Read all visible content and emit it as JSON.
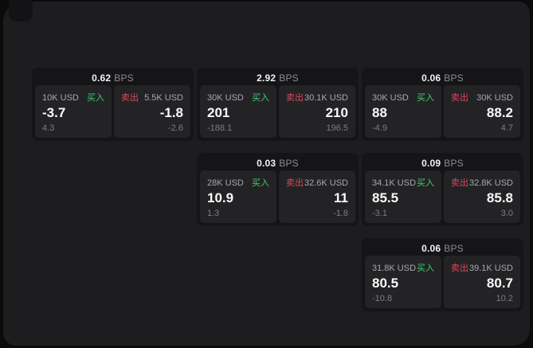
{
  "labels": {
    "buy": "买入",
    "sell": "卖出",
    "bps_unit": "BPS"
  },
  "colors": {
    "buy": "#3ecf6e",
    "sell": "#d8485c",
    "panel_bg": "#1d1d1f",
    "card_bg": "#151517",
    "subpanel_bg": "#232326",
    "value_text": "#fafafa",
    "muted_text": "#8c8c90"
  },
  "cards": [
    {
      "bps": "0.62",
      "col": 1,
      "row": 1,
      "buy": {
        "size": "10K USD",
        "value": "-3.7",
        "sub": "4.3"
      },
      "sell": {
        "size": "5.5K USD",
        "value": "-1.8",
        "sub": "-2.6"
      }
    },
    {
      "bps": "2.92",
      "col": 2,
      "row": 1,
      "buy": {
        "size": "30K USD",
        "value": "201",
        "sub": "-188.1"
      },
      "sell": {
        "size": "30.1K USD",
        "value": "210",
        "sub": "196.5"
      }
    },
    {
      "bps": "0.06",
      "col": 3,
      "row": 1,
      "buy": {
        "size": "30K USD",
        "value": "88",
        "sub": "-4.9"
      },
      "sell": {
        "size": "30K USD",
        "value": "88.2",
        "sub": "4.7"
      }
    },
    {
      "bps": "0.03",
      "col": 2,
      "row": 2,
      "buy": {
        "size": "28K USD",
        "value": "10.9",
        "sub": "1.3"
      },
      "sell": {
        "size": "32.6K USD",
        "value": "11",
        "sub": "-1.8"
      }
    },
    {
      "bps": "0.09",
      "col": 3,
      "row": 2,
      "buy": {
        "size": "34.1K USD",
        "value": "85.5",
        "sub": "-3.1"
      },
      "sell": {
        "size": "32.8K USD",
        "value": "85.8",
        "sub": "3.0"
      }
    },
    {
      "bps": "0.06",
      "col": 3,
      "row": 3,
      "buy": {
        "size": "31.8K USD",
        "value": "80.5",
        "sub": "-10.8"
      },
      "sell": {
        "size": "39.1K USD",
        "value": "80.7",
        "sub": "10.2"
      }
    }
  ]
}
